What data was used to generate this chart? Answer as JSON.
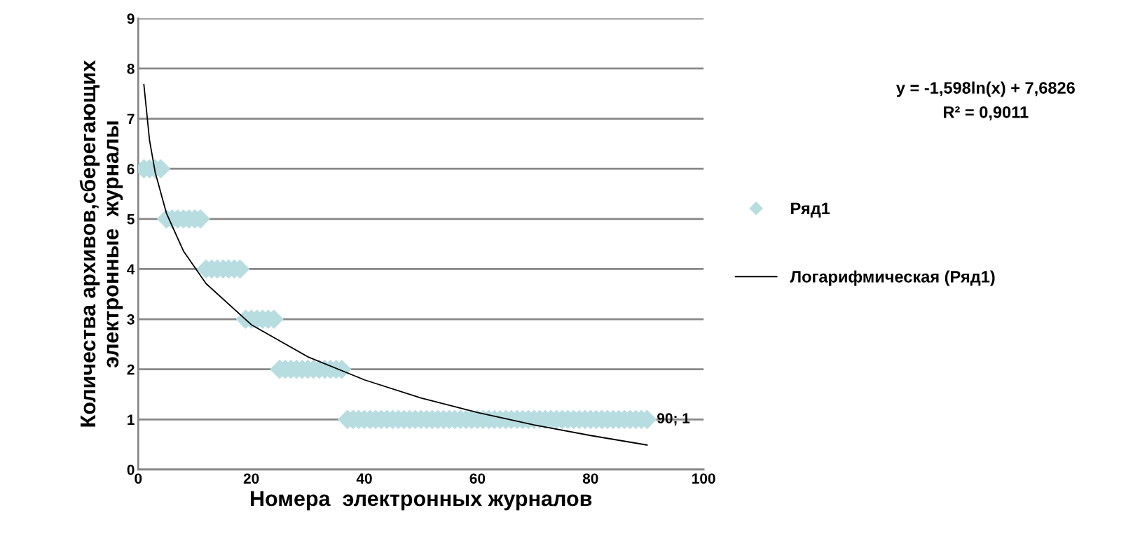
{
  "chart_data": {
    "type": "scatter",
    "xlabel": "Номера  электронных журналов",
    "ylabel": "Количества архивов,сберегающих электронные  журналы",
    "xlim": [
      0,
      100
    ],
    "xticks": [
      0,
      20,
      40,
      60,
      80,
      100
    ],
    "ylim": [
      0,
      9
    ],
    "yticks": [
      0,
      1,
      2,
      3,
      4,
      5,
      6,
      7,
      8,
      9
    ],
    "grid": "y",
    "legend": "right",
    "marker": "diamond",
    "series": [
      {
        "name": "Ряд1",
        "color": "#b7dde1",
        "x": [
          1,
          2,
          3,
          4,
          5,
          6,
          7,
          8,
          9,
          10,
          11,
          12,
          13,
          14,
          15,
          16,
          17,
          18,
          19,
          20,
          21,
          22,
          23,
          24,
          25,
          26,
          27,
          28,
          29,
          30,
          31,
          32,
          33,
          34,
          35,
          36,
          37,
          38,
          39,
          40,
          41,
          42,
          43,
          44,
          45,
          46,
          47,
          48,
          49,
          50,
          51,
          52,
          53,
          54,
          55,
          56,
          57,
          58,
          59,
          60,
          61,
          62,
          63,
          64,
          65,
          66,
          67,
          68,
          69,
          70,
          71,
          72,
          73,
          74,
          75,
          76,
          77,
          78,
          79,
          80,
          81,
          82,
          83,
          84,
          85,
          86,
          87,
          88,
          89,
          90
        ],
        "values": [
          6,
          6,
          6,
          6,
          5,
          5,
          5,
          5,
          5,
          5,
          5,
          4,
          4,
          4,
          4,
          4,
          4,
          4,
          3,
          3,
          3,
          3,
          3,
          3,
          2,
          2,
          2,
          2,
          2,
          2,
          2,
          2,
          2,
          2,
          2,
          2,
          1,
          1,
          1,
          1,
          1,
          1,
          1,
          1,
          1,
          1,
          1,
          1,
          1,
          1,
          1,
          1,
          1,
          1,
          1,
          1,
          1,
          1,
          1,
          1,
          1,
          1,
          1,
          1,
          1,
          1,
          1,
          1,
          1,
          1,
          1,
          1,
          1,
          1,
          1,
          1,
          1,
          1,
          1,
          1,
          1,
          1,
          1,
          1,
          1,
          1,
          1,
          1,
          1,
          1
        ],
        "value_labels": [
          null,
          null,
          null,
          null,
          null,
          null,
          null,
          null,
          null,
          null,
          null,
          null,
          null,
          null,
          null,
          null,
          null,
          null,
          null,
          null,
          null,
          null,
          null,
          null,
          null,
          null,
          null,
          null,
          null,
          null,
          null,
          null,
          null,
          null,
          null,
          null,
          null,
          null,
          null,
          null,
          null,
          null,
          null,
          null,
          null,
          null,
          null,
          null,
          null,
          null,
          null,
          null,
          null,
          null,
          null,
          null,
          null,
          null,
          null,
          null,
          null,
          null,
          null,
          null,
          null,
          null,
          null,
          null,
          null,
          null,
          null,
          null,
          null,
          null,
          null,
          null,
          null,
          null,
          null,
          null,
          null,
          null,
          null,
          null,
          null,
          null,
          null,
          null,
          null,
          "90; 1"
        ]
      },
      {
        "name": "Логарифмическая (Ряд1)",
        "type": "line",
        "color": "#000000",
        "marker": "none",
        "line_style": "solid",
        "x": [
          1,
          2,
          3,
          5,
          8,
          12,
          20,
          30,
          40,
          50,
          60,
          70,
          80,
          90
        ],
        "values": [
          7.68,
          6.57,
          5.93,
          5.11,
          4.36,
          3.71,
          2.89,
          2.25,
          1.79,
          1.43,
          1.14,
          0.89,
          0.68,
          0.49
        ]
      }
    ],
    "annotations": [
      "y = -1,598ln(x) + 7,6826",
      "R² = 0,9011"
    ]
  }
}
